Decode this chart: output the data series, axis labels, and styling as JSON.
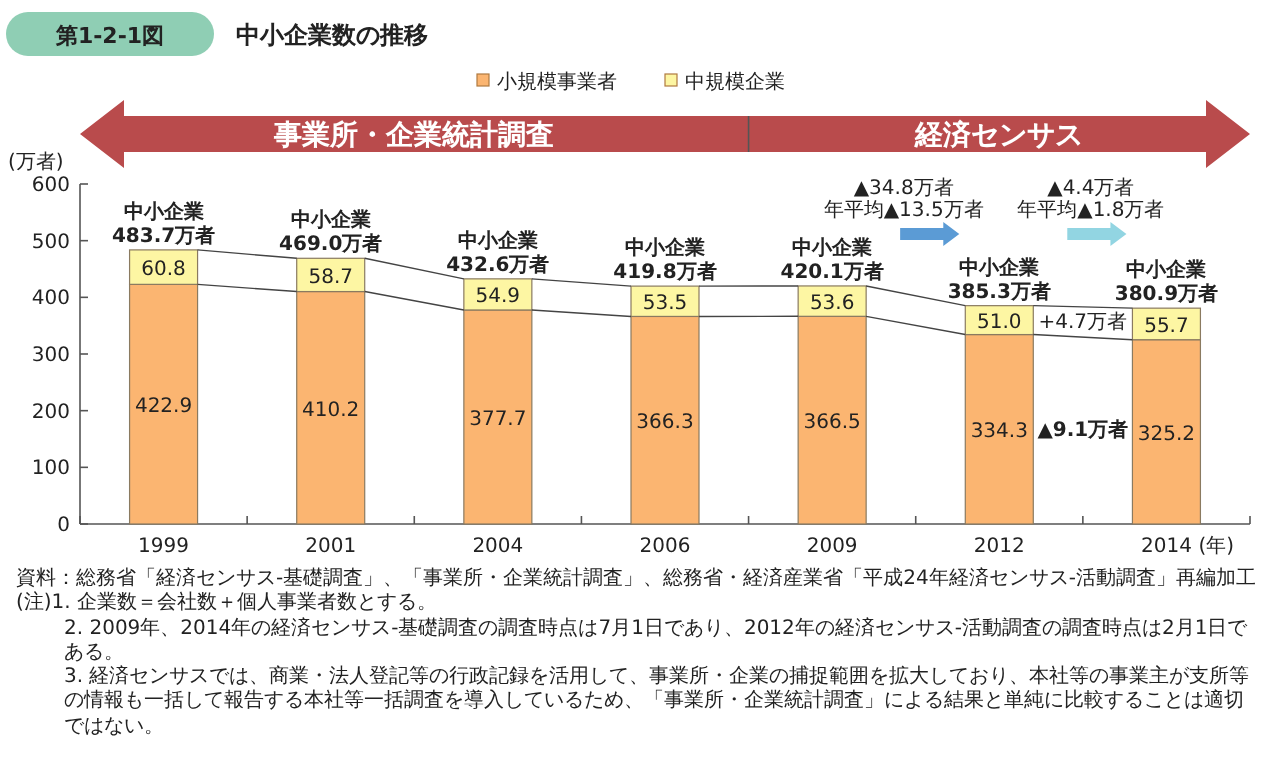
{
  "chart_data": {
    "type": "bar",
    "stacked": true,
    "title": "中小企業数の推移",
    "subtitle": "第1-2-1図",
    "ylabel": "(万者)",
    "xlabel": "(年)",
    "categories": [
      "1999",
      "2001",
      "2004",
      "2006",
      "2009",
      "2012",
      "2014"
    ],
    "series": [
      {
        "name": "小規模事業者",
        "color": "#fbb571",
        "values": [
          422.9,
          410.2,
          377.7,
          366.3,
          366.5,
          334.3,
          325.2
        ],
        "value_labels": [
          "422.9",
          "410.2",
          "377.7",
          "366.3",
          "366.5",
          "334.3",
          "325.2"
        ]
      },
      {
        "name": "中規模企業",
        "color": "#fdf6a3",
        "values": [
          60.8,
          58.7,
          54.9,
          53.5,
          53.6,
          51.0,
          55.7
        ],
        "value_labels": [
          "60.8",
          "58.7",
          "54.9",
          "53.5",
          "53.6",
          "51.0",
          "55.7"
        ]
      }
    ],
    "totals": [
      "中小企業 483.7万者",
      "中小企業 469.0万者",
      "中小企業 432.6万者",
      "中小企業 419.8万者",
      "中小企業 420.1万者",
      "中小企業 385.3万者",
      "中小企業 380.9万者"
    ],
    "ylim": [
      0,
      600
    ],
    "yticks": [
      0,
      100,
      200,
      300,
      400,
      500,
      600
    ],
    "legend": "top",
    "grid": false,
    "annotations": [
      "事業所・企業統計調査",
      "経済センサス",
      "▲34.8万者",
      "年平均▲13.5万者",
      "▲4.4万者",
      "年平均▲1.8万者",
      "+4.7万者",
      "▲9.1万者",
      "資料：総務省「経済センサス‐基礎調査」、「事業所・企業統計調査」、総務省・経済産業省「平成24年経済センサス‐活動調査」再編加工",
      "(注)1. 企業数＝会社数＋個人事業者数とする。",
      "2. 2009年、2014年の経済センサス‐基礎調査の調査時点は7月1日であり、2012年の経済センサス‐活動調査の調査時点は2月1日である。",
      "3. 経済センサスでは、商業・法人登記等の行政記録を活用して、事業所・企業の捕捉範囲を拡大しており、本社等の事業主が支所等の情報も一括して報告する本社等一括調査を導入しているため、「事業所・企業統計調査」による結果と単純に比較することは適切ではない。"
    ]
  }
}
